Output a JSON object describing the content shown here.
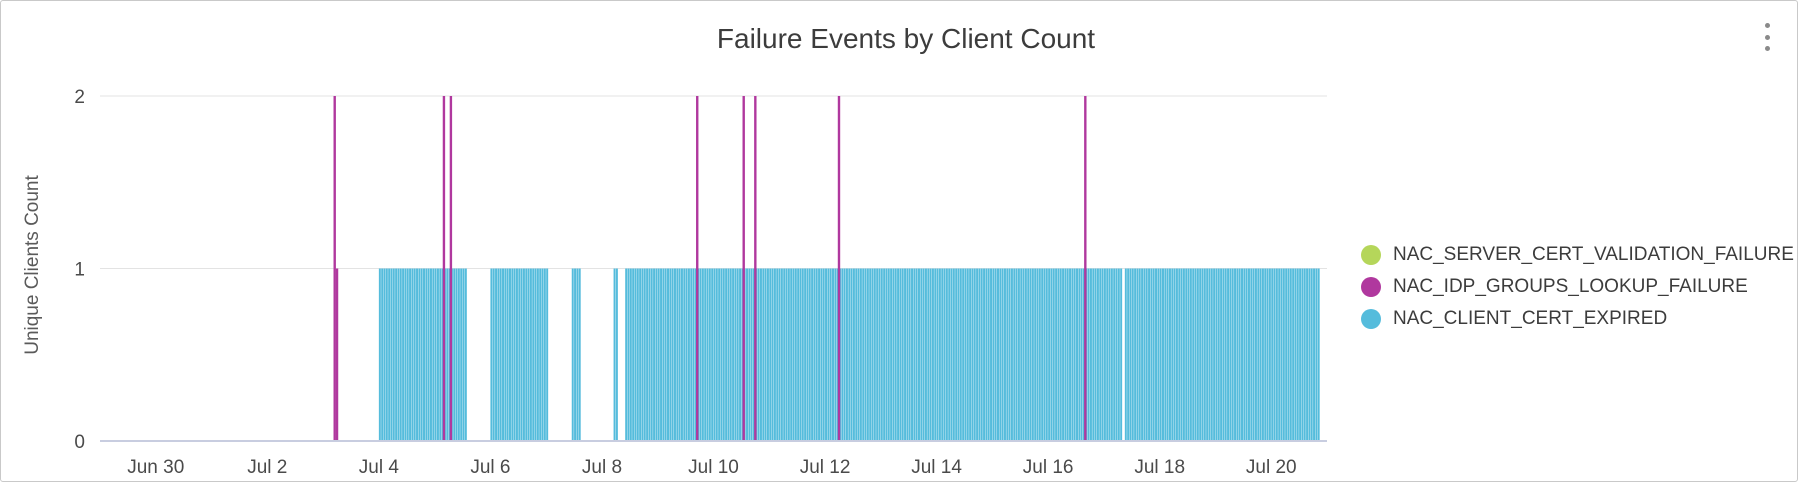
{
  "chart_data": {
    "type": "bar",
    "title": "Failure Events by Client Count",
    "ylabel": "Unique Clients Count",
    "xlabel": "",
    "x_range": [
      "2025-06-29",
      "2025-07-21"
    ],
    "ylim": [
      0,
      2
    ],
    "y_ticks": [
      0,
      1,
      2
    ],
    "x_tick_labels": [
      "Jun 30",
      "Jul 2",
      "Jul 4",
      "Jul 6",
      "Jul 8",
      "Jul 10",
      "Jul 12",
      "Jul 14",
      "Jul 16",
      "Jul 18",
      "Jul 20"
    ],
    "grid": true,
    "legend_position": "right",
    "series": [
      {
        "name": "NAC_SERVER_CERT_VALIDATION_FAILURE",
        "color": "#b5d65a",
        "bars": []
      },
      {
        "name": "NAC_IDP_GROUPS_LOOKUP_FAILURE",
        "color": "#b0389e",
        "bars": [
          {
            "x": "2025-07-03 05:00",
            "value": 2
          },
          {
            "x": "2025-07-03 06:00",
            "value": 1
          },
          {
            "x": "2025-07-05 04:00",
            "value": 2
          },
          {
            "x": "2025-07-05 07:00",
            "value": 2
          },
          {
            "x": "2025-07-09 17:00",
            "value": 2
          },
          {
            "x": "2025-07-10 13:00",
            "value": 2
          },
          {
            "x": "2025-07-10 18:00",
            "value": 2
          },
          {
            "x": "2025-07-12 06:00",
            "value": 2
          },
          {
            "x": "2025-07-16 16:00",
            "value": 2
          }
        ]
      },
      {
        "name": "NAC_CLIENT_CERT_EXPIRED",
        "color": "#55bcdc",
        "ranges": [
          {
            "start": "2025-07-04 00:00",
            "end": "2025-07-05 14:00",
            "value": 1
          },
          {
            "start": "2025-07-06 00:00",
            "end": "2025-07-07 01:00",
            "value": 1
          },
          {
            "start": "2025-07-07 11:00",
            "end": "2025-07-07 15:00",
            "value": 1
          },
          {
            "start": "2025-07-08 05:00",
            "end": "2025-07-08 07:00",
            "value": 1
          },
          {
            "start": "2025-07-08 10:00",
            "end": "2025-07-17 08:00",
            "value": 1
          },
          {
            "start": "2025-07-17 09:00",
            "end": "2025-07-20 21:00",
            "value": 1
          }
        ]
      }
    ]
  }
}
